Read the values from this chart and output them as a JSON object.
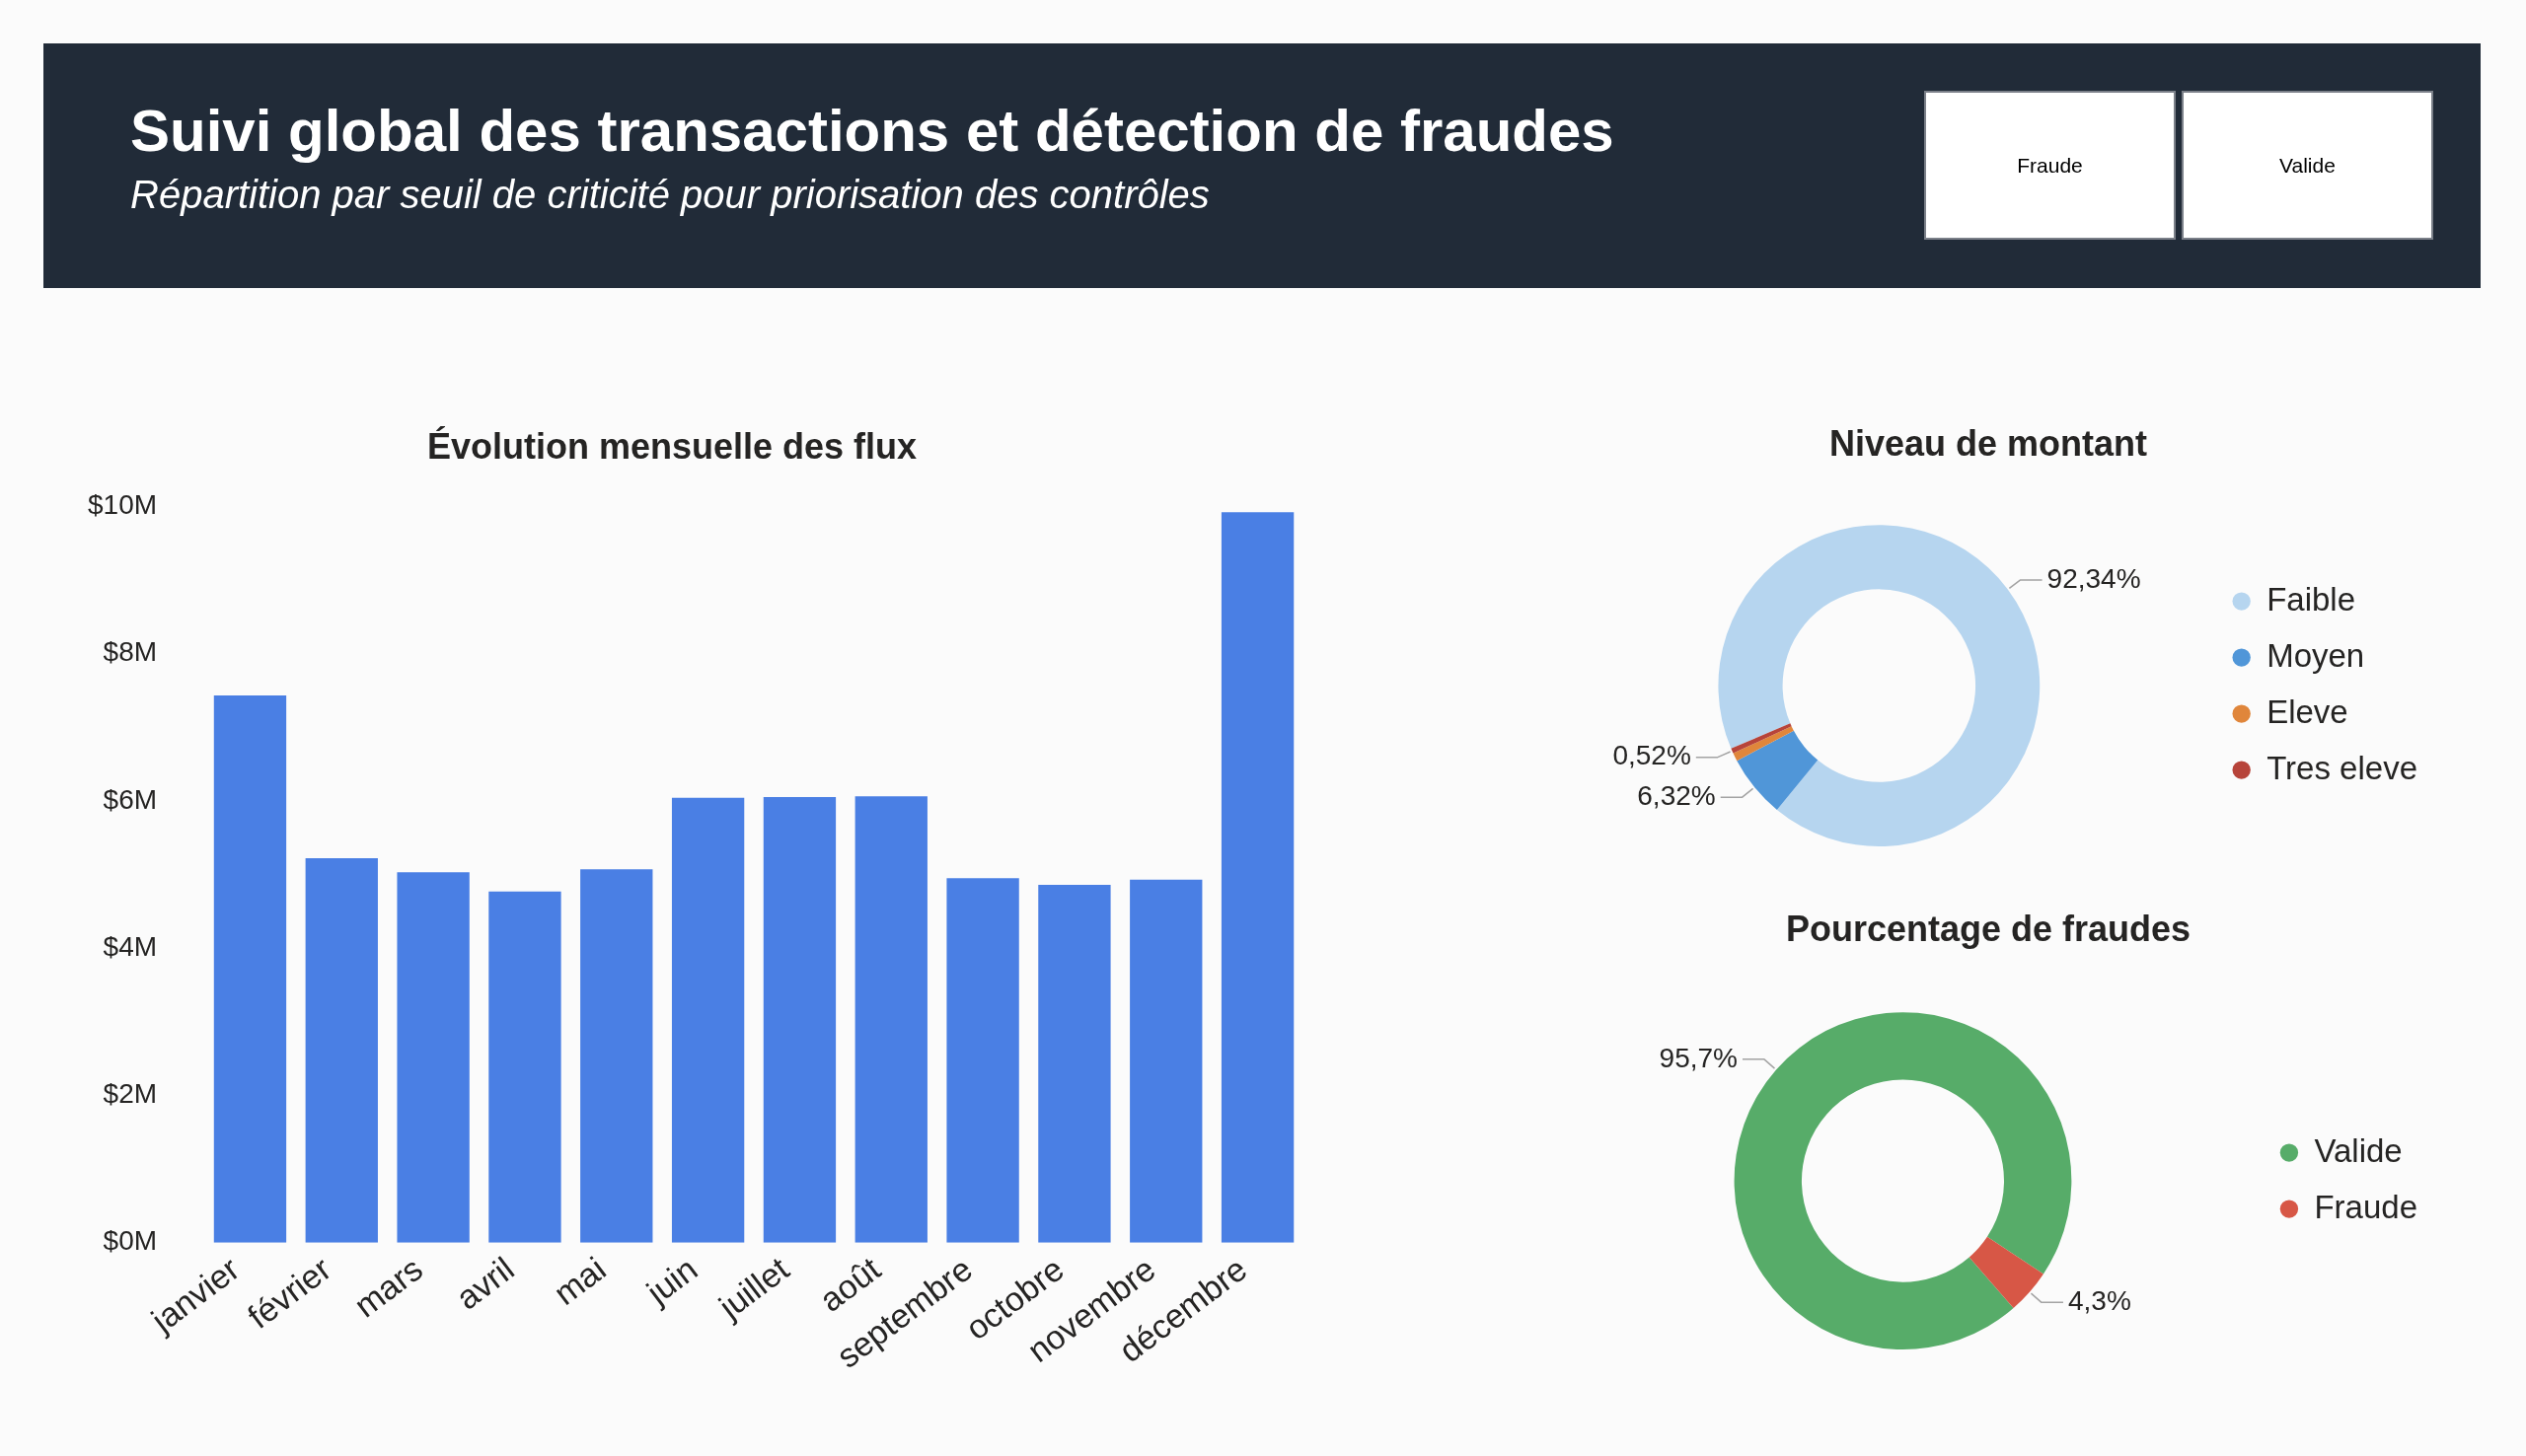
{
  "chart_data": [
    {
      "type": "other",
      "title": "Suivi global des transactions et détection de fraudes",
      "subtitle": "Répartition par seuil de criticité pour priorisation des contrôles",
      "annotations": [
        "Fraude",
        "Valide"
      ]
    },
    {
      "type": "bar",
      "title": "Évolution mensuelle des flux",
      "categories": [
        "janvier",
        "février",
        "mars",
        "avril",
        "mai",
        "juin",
        "juillet",
        "août",
        "septembre",
        "octobre",
        "novembre",
        "décembre"
      ],
      "values": [
        7.43,
        5.22,
        5.03,
        4.77,
        5.07,
        6.04,
        6.05,
        6.06,
        4.95,
        4.86,
        4.93,
        9.92
      ],
      "color": "#4a7fe4",
      "ylim": [
        0,
        10
      ],
      "yticks": [
        {
          "value": 0,
          "label": "$0M"
        },
        {
          "value": 2,
          "label": "$2M"
        },
        {
          "value": 4,
          "label": "$4M"
        },
        {
          "value": 6,
          "label": "$6M"
        },
        {
          "value": 8,
          "label": "$8M"
        },
        {
          "value": 10,
          "label": "$10M"
        }
      ]
    },
    {
      "type": "donut",
      "title": "Niveau de montant",
      "categories": [
        "Faible",
        "Moyen",
        "Eleve",
        "Tres eleve"
      ],
      "values": [
        92.34,
        6.32,
        0.82,
        0.52
      ],
      "colors": [
        "#b6d5ef",
        "#5096d8",
        "#e0863b",
        "#b7443a"
      ],
      "value_labels": [
        "92,34%",
        "6,32%",
        null,
        "0,52%"
      ],
      "legend": "right"
    },
    {
      "type": "donut",
      "title": "Pourcentage de fraudes",
      "categories": [
        "Valide",
        "Fraude"
      ],
      "values": [
        95.7,
        4.3
      ],
      "colors": [
        "#57ac69",
        "#d75746"
      ],
      "value_labels": [
        "95,7%",
        "4,3%"
      ],
      "legend": "right"
    }
  ]
}
